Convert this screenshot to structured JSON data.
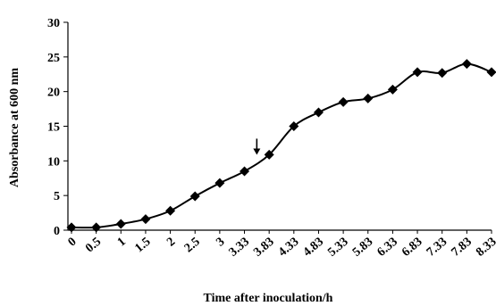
{
  "chart_data": {
    "type": "line",
    "xlabel": "Time after inoculation/h",
    "ylabel": "Absorbance at 600 nm",
    "ylim": [
      0,
      30
    ],
    "y_ticks": [
      "0",
      "5",
      "10",
      "15",
      "20",
      "25",
      "30"
    ],
    "categories": [
      "0",
      "0.5",
      "1",
      "1.5",
      "2",
      "2.5",
      "3",
      "3.33",
      "3.83",
      "4.33",
      "4.83",
      "5.33",
      "5.83",
      "6.33",
      "6.83",
      "7.33",
      "7.83",
      "8.33"
    ],
    "series": [
      {
        "values": [
          0.4,
          0.4,
          0.9,
          1.6,
          2.8,
          4.9,
          6.8,
          8.5,
          10.9,
          15.0,
          17.0,
          18.5,
          19.0,
          20.3,
          22.8,
          22.7,
          24.0,
          22.8
        ],
        "color": "#000000"
      }
    ],
    "annotation": {
      "type": "arrow",
      "between": [
        "3.33",
        "3.83"
      ],
      "target_y": 9.6
    },
    "grid": false,
    "legend": "none"
  }
}
